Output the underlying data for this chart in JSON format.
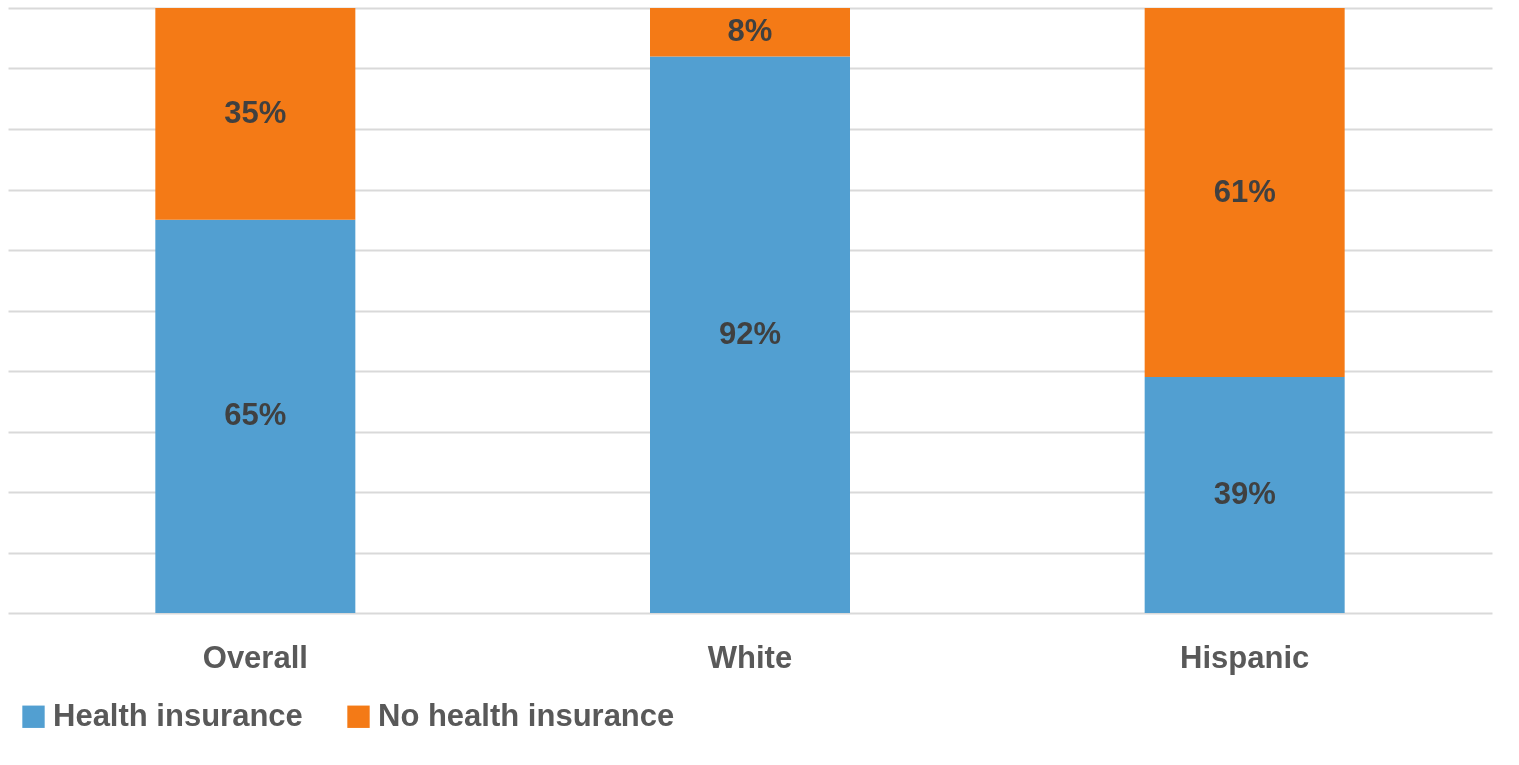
{
  "chart_data": {
    "type": "bar",
    "stacked": true,
    "categories": [
      "Overall",
      "White",
      "Hispanic"
    ],
    "series": [
      {
        "name": "Health insurance",
        "color": "#529fd1",
        "values": [
          65,
          92,
          39
        ],
        "value_labels": [
          "65%",
          "92%",
          "39%"
        ]
      },
      {
        "name": "No health insurance",
        "color": "#f47a16",
        "values": [
          35,
          8,
          61
        ],
        "value_labels": [
          "35%",
          "8%",
          "61%"
        ]
      }
    ],
    "ylim": [
      0,
      100
    ],
    "yticks": [
      {
        "value": 0,
        "label": null
      },
      {
        "value": 10,
        "label": null
      },
      {
        "value": 20,
        "label": null
      },
      {
        "value": 30,
        "label": null
      },
      {
        "value": 40,
        "label": null
      },
      {
        "value": 50,
        "label": null
      },
      {
        "value": 60,
        "label": null
      },
      {
        "value": 70,
        "label": null
      },
      {
        "value": 80,
        "label": null
      },
      {
        "value": 90,
        "label": null
      },
      {
        "value": 100,
        "label": null
      }
    ],
    "tick_labels": "x",
    "grid": "y",
    "legend": "bottom"
  }
}
